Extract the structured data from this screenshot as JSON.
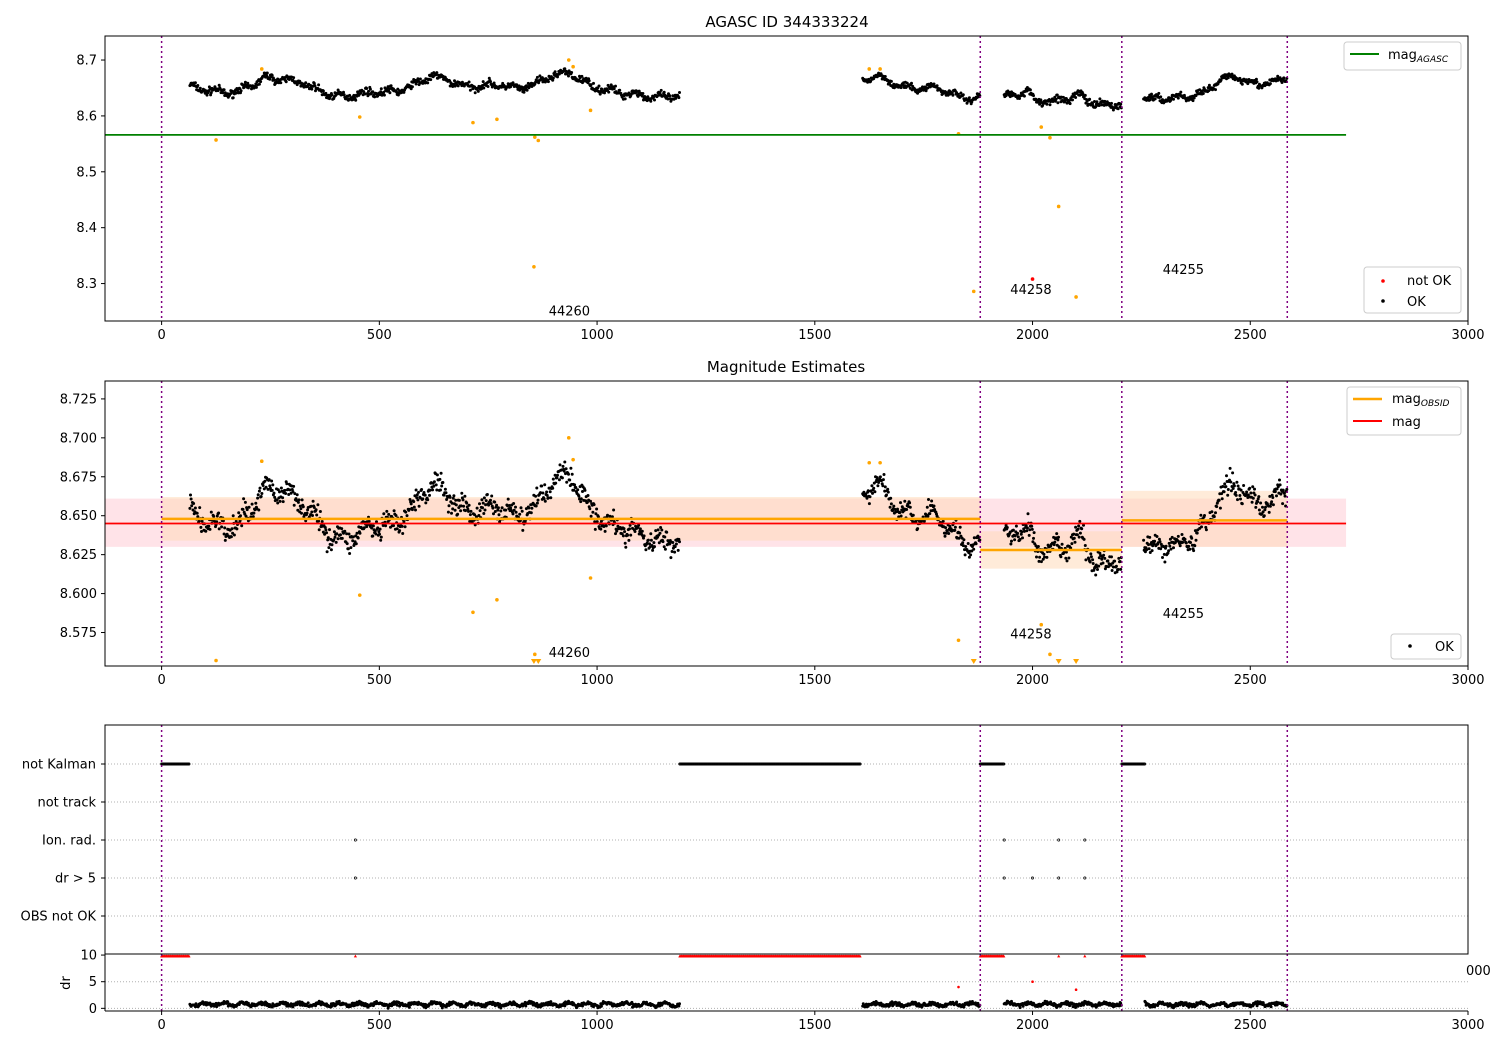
{
  "colors": {
    "ok": "#000000",
    "not_ok": "#ff0000",
    "estimate": "#ffa500",
    "agasc": "#008000",
    "mag": "#ff0000",
    "obs_boundary": "#800080",
    "mag_band": "#ffc0cb",
    "obs_band": "#ffdab9"
  },
  "chart_data": [
    {
      "type": "scatter",
      "title": "AGASC ID 344333224",
      "xlabel": "",
      "ylabel": "",
      "xlim": [
        -130,
        3000
      ],
      "ylim": [
        8.233,
        8.743
      ],
      "xticks": [
        0,
        500,
        1000,
        1500,
        2000,
        2500,
        3000
      ],
      "yticks": [
        8.3,
        8.4,
        8.5,
        8.6,
        8.7
      ],
      "legend_position": "top-right",
      "legend2_position": "bottom-right",
      "legend": [
        {
          "label": "mag",
          "sub": "AGASC",
          "kind": "line",
          "color_key": "agasc"
        }
      ],
      "legend2": [
        {
          "label": "not OK",
          "kind": "dot",
          "color_key": "not_ok"
        },
        {
          "label": "OK",
          "kind": "dot",
          "color_key": "ok"
        }
      ],
      "mag_agasc": {
        "value": 8.566,
        "x_range": [
          -130,
          2720
        ]
      },
      "obs_boundaries": [
        0,
        1880,
        2205,
        2585
      ],
      "obs_labels": [
        {
          "text": "44260",
          "x": 990,
          "y": 8.252
        },
        {
          "text": "44258",
          "x": 2050,
          "y": 8.29
        },
        {
          "text": "44255",
          "x": 2400,
          "y": 8.326
        }
      ],
      "ok_trend": [
        {
          "segment": [
            [
              65,
              8.652
            ],
            [
              120,
              8.648
            ],
            [
              150,
              8.64
            ],
            [
              180,
              8.642
            ],
            [
              210,
              8.655
            ],
            [
              240,
              8.672
            ],
            [
              270,
              8.668
            ],
            [
              300,
              8.662
            ],
            [
              340,
              8.65
            ],
            [
              380,
              8.642
            ],
            [
              420,
              8.636
            ],
            [
              460,
              8.637
            ],
            [
              500,
              8.642
            ],
            [
              540,
              8.648
            ],
            [
              580,
              8.655
            ],
            [
              620,
              8.668
            ],
            [
              660,
              8.665
            ],
            [
              700,
              8.655
            ],
            [
              740,
              8.652
            ],
            [
              780,
              8.653
            ],
            [
              820,
              8.652
            ],
            [
              860,
              8.658
            ],
            [
              900,
              8.67
            ],
            [
              940,
              8.676
            ],
            [
              980,
              8.66
            ],
            [
              1020,
              8.645
            ],
            [
              1060,
              8.638
            ],
            [
              1100,
              8.64
            ],
            [
              1140,
              8.635
            ],
            [
              1190,
              8.632
            ]
          ],
          "spread": 0.006
        },
        {
          "segment": [
            [
              1610,
              8.66
            ],
            [
              1640,
              8.67
            ],
            [
              1670,
              8.664
            ],
            [
              1700,
              8.655
            ],
            [
              1740,
              8.648
            ],
            [
              1780,
              8.648
            ],
            [
              1820,
              8.64
            ],
            [
              1860,
              8.633
            ],
            [
              1880,
              8.632
            ]
          ],
          "spread": 0.005
        },
        {
          "segment": [
            [
              1935,
              8.633
            ],
            [
              1960,
              8.642
            ],
            [
              1990,
              8.645
            ],
            [
              2010,
              8.63
            ],
            [
              2040,
              8.624
            ],
            [
              2080,
              8.628
            ],
            [
              2110,
              8.64
            ],
            [
              2140,
              8.624
            ],
            [
              2170,
              8.618
            ],
            [
              2205,
              8.618
            ]
          ],
          "spread": 0.006
        },
        {
          "segment": [
            [
              2255,
              8.632
            ],
            [
              2290,
              8.634
            ],
            [
              2330,
              8.63
            ],
            [
              2370,
              8.633
            ],
            [
              2400,
              8.648
            ],
            [
              2430,
              8.665
            ],
            [
              2460,
              8.672
            ],
            [
              2490,
              8.66
            ],
            [
              2520,
              8.655
            ],
            [
              2550,
              8.662
            ],
            [
              2585,
              8.67
            ]
          ],
          "spread": 0.006
        }
      ],
      "outliers_estimate": [
        [
          125,
          8.557
        ],
        [
          230,
          8.684
        ],
        [
          455,
          8.598
        ],
        [
          715,
          8.588
        ],
        [
          770,
          8.594
        ],
        [
          855,
          8.33
        ],
        [
          857,
          8.562
        ],
        [
          865,
          8.556
        ],
        [
          935,
          8.7
        ],
        [
          945,
          8.688
        ],
        [
          985,
          8.61
        ],
        [
          1830,
          8.568
        ],
        [
          1865,
          8.286
        ],
        [
          2020,
          8.58
        ],
        [
          2040,
          8.561
        ],
        [
          2060,
          8.438
        ],
        [
          2100,
          8.276
        ],
        [
          1625,
          8.684
        ],
        [
          1650,
          8.684
        ]
      ],
      "not_ok_points": [
        [
          2000,
          8.308
        ]
      ]
    },
    {
      "type": "scatter",
      "title": "Magnitude Estimates",
      "xlabel": "",
      "ylabel": "",
      "xlim": [
        -130,
        3000
      ],
      "ylim": [
        8.5535,
        8.7365
      ],
      "xticks": [
        0,
        500,
        1000,
        1500,
        2000,
        2500,
        3000
      ],
      "yticks": [
        8.575,
        8.6,
        8.625,
        8.65,
        8.675,
        8.7,
        8.725
      ],
      "legend_position": "top-right",
      "legend2_position": "bottom-right",
      "legend": [
        {
          "label": "mag",
          "sub": "OBSID",
          "kind": "line",
          "color_key": "estimate"
        },
        {
          "label": "mag",
          "sub": "",
          "kind": "line",
          "color_key": "mag"
        }
      ],
      "legend2": [
        {
          "label": "OK",
          "kind": "dot",
          "color_key": "ok"
        }
      ],
      "mag": {
        "value": 8.645,
        "band": [
          8.63,
          8.661
        ],
        "x_range": [
          -130,
          2720
        ]
      },
      "obsid_mags": [
        {
          "x_range": [
            0,
            1880
          ],
          "value": 8.648,
          "band": [
            8.634,
            8.662
          ]
        },
        {
          "x_range": [
            1880,
            2205
          ],
          "value": 8.628,
          "band": [
            8.616,
            8.64
          ]
        },
        {
          "x_range": [
            2205,
            2585
          ],
          "value": 8.647,
          "band": [
            8.63,
            8.666
          ]
        }
      ],
      "obs_boundaries": [
        0,
        1880,
        2205,
        2585
      ],
      "obs_labels": [
        {
          "text": "44260",
          "x": 990,
          "y": 8.5625
        },
        {
          "text": "44258",
          "x": 2050,
          "y": 8.5745
        },
        {
          "text": "44255",
          "x": 2400,
          "y": 8.5875
        }
      ],
      "ok_trend_ref": 0,
      "outliers_estimate": [
        [
          125,
          8.557
        ],
        [
          230,
          8.685
        ],
        [
          455,
          8.599
        ],
        [
          715,
          8.588
        ],
        [
          770,
          8.596
        ],
        [
          857,
          8.561
        ],
        [
          935,
          8.7
        ],
        [
          945,
          8.686
        ],
        [
          985,
          8.61
        ],
        [
          1625,
          8.684
        ],
        [
          1650,
          8.684
        ],
        [
          1830,
          8.57
        ],
        [
          2020,
          8.58
        ],
        [
          2040,
          8.561
        ]
      ],
      "clipped_points": [
        855,
        865,
        1865,
        2060,
        2100
      ]
    },
    {
      "type": "scatter",
      "title": "",
      "xlabel": "",
      "ylabel": "",
      "xlim": [
        -130,
        3000
      ],
      "xticks": [
        0,
        500,
        1000,
        1500,
        2000,
        2500,
        3000
      ],
      "flag_rows": [
        "not Kalman",
        "not track",
        "Ion. rad.",
        "dr > 5",
        "OBS not OK"
      ],
      "flag_ranges": {
        "not Kalman": [
          [
            0,
            63
          ],
          [
            1190,
            1605
          ],
          [
            1880,
            1935
          ],
          [
            2205,
            2258
          ]
        ],
        "not track": [],
        "Ion. rad.": [
          [
            445,
            445
          ],
          [
            1935,
            1935
          ],
          [
            2060,
            2060
          ],
          [
            2120,
            2120
          ]
        ],
        "dr > 5": [
          [
            445,
            445
          ],
          [
            1935,
            1935
          ],
          [
            2000,
            2000
          ],
          [
            2060,
            2060
          ],
          [
            2120,
            2120
          ]
        ],
        "OBS not OK": []
      },
      "obs_boundaries": [
        0,
        1880,
        2205,
        2585
      ]
    },
    {
      "type": "scatter",
      "title": "",
      "xlabel": "",
      "ylabel": "dr",
      "xlim": [
        -130,
        3000
      ],
      "ylim": [
        -0.5,
        10.2
      ],
      "xticks": [
        0,
        500,
        1000,
        1500,
        2000,
        2500,
        3000
      ],
      "yticks": [
        0,
        5,
        10
      ],
      "stray_tick_label": "000",
      "dr_clipped_ranges": [
        [
          0,
          63
        ],
        [
          445,
          445
        ],
        [
          1190,
          1605
        ],
        [
          1880,
          1935
        ],
        [
          2060,
          2060
        ],
        [
          2120,
          2120
        ],
        [
          2205,
          2258
        ]
      ],
      "dr_ok_ranges": [
        [
          65,
          1190
        ],
        [
          1610,
          1880
        ],
        [
          1935,
          2205
        ],
        [
          2258,
          2585
        ]
      ],
      "dr_ok_level": 0.75,
      "dr_ok_spread": 0.45,
      "dr_not_ok_points": [
        [
          1830,
          4.0
        ],
        [
          2000,
          5.0
        ],
        [
          2100,
          3.5
        ]
      ],
      "obs_boundaries": [
        0,
        1880,
        2205,
        2585
      ]
    }
  ]
}
